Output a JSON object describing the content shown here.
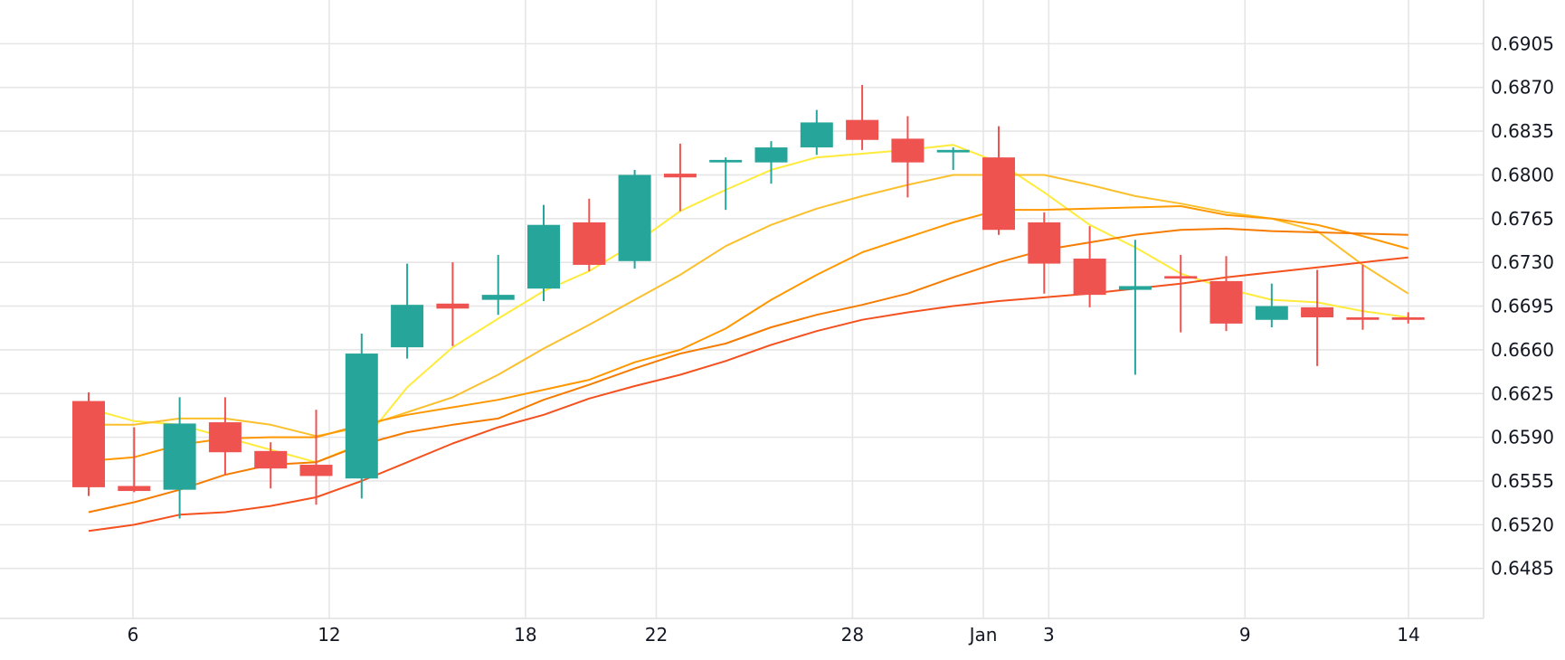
{
  "chart_data": {
    "type": "candlestick",
    "title": "",
    "xlabel": "",
    "ylabel": "",
    "ylim": [
      0.6445,
      0.694
    ],
    "grid": true,
    "colors": {
      "up": "#26a69a",
      "down": "#ef5350",
      "grid": "#e6e6e6",
      "text": "#131722",
      "ma_lines": [
        "#ffeb3b",
        "#fbc02d",
        "#ff9800",
        "#f57c00",
        "#f4511e"
      ]
    },
    "y_ticks": [
      "0.6905",
      "0.6870",
      "0.6835",
      "0.6800",
      "0.6765",
      "0.6730",
      "0.6695",
      "0.6660",
      "0.6625",
      "0.6590",
      "0.6555",
      "0.6520",
      "0.6485"
    ],
    "x_ticks": [
      {
        "label": "6",
        "date": "Dec 6"
      },
      {
        "label": "12",
        "date": "Dec 12"
      },
      {
        "label": "18",
        "date": "Dec 18"
      },
      {
        "label": "22",
        "date": "Dec 22"
      },
      {
        "label": "28",
        "date": "Dec 28"
      },
      {
        "label": "Jan",
        "date": "Jan 1"
      },
      {
        "label": "3",
        "date": "Jan 3"
      },
      {
        "label": "9",
        "date": "Jan 9"
      },
      {
        "label": "14",
        "date": "Jan 14"
      }
    ],
    "candles": [
      {
        "date": "Dec 5",
        "open": 0.6619,
        "high": 0.6626,
        "low": 0.6543,
        "close": 0.655
      },
      {
        "date": "Dec 6",
        "open": 0.6551,
        "high": 0.6598,
        "low": 0.6546,
        "close": 0.6547
      },
      {
        "date": "Dec 7",
        "open": 0.6548,
        "high": 0.6622,
        "low": 0.6525,
        "close": 0.6601
      },
      {
        "date": "Dec 8",
        "open": 0.6602,
        "high": 0.6622,
        "low": 0.656,
        "close": 0.6578
      },
      {
        "date": "Dec 9",
        "open": 0.6579,
        "high": 0.6586,
        "low": 0.6549,
        "close": 0.6565
      },
      {
        "date": "Dec 12",
        "open": 0.6568,
        "high": 0.6612,
        "low": 0.6536,
        "close": 0.6559
      },
      {
        "date": "Dec 13",
        "open": 0.6557,
        "high": 0.6673,
        "low": 0.6541,
        "close": 0.6657
      },
      {
        "date": "Dec 14",
        "open": 0.6662,
        "high": 0.6729,
        "low": 0.6653,
        "close": 0.6696
      },
      {
        "date": "Dec 15",
        "open": 0.6697,
        "high": 0.673,
        "low": 0.6663,
        "close": 0.6693
      },
      {
        "date": "Dec 16",
        "open": 0.67,
        "high": 0.6736,
        "low": 0.6688,
        "close": 0.6704
      },
      {
        "date": "Dec 19",
        "open": 0.6709,
        "high": 0.6776,
        "low": 0.6699,
        "close": 0.676
      },
      {
        "date": "Dec 20",
        "open": 0.6762,
        "high": 0.6781,
        "low": 0.6723,
        "close": 0.6728
      },
      {
        "date": "Dec 21",
        "open": 0.6731,
        "high": 0.6804,
        "low": 0.6725,
        "close": 0.68
      },
      {
        "date": "Dec 22",
        "open": 0.6801,
        "high": 0.6825,
        "low": 0.6771,
        "close": 0.6798
      },
      {
        "date": "Dec 23",
        "open": 0.681,
        "high": 0.6814,
        "low": 0.6772,
        "close": 0.6812
      },
      {
        "date": "Dec 27",
        "open": 0.681,
        "high": 0.6827,
        "low": 0.6793,
        "close": 0.6822
      },
      {
        "date": "Dec 28",
        "open": 0.6822,
        "high": 0.6852,
        "low": 0.6816,
        "close": 0.6842
      },
      {
        "date": "Dec 29",
        "open": 0.6844,
        "high": 0.6872,
        "low": 0.682,
        "close": 0.6828
      },
      {
        "date": "Dec 30",
        "open": 0.6829,
        "high": 0.6847,
        "low": 0.6782,
        "close": 0.681
      },
      {
        "date": "Jan 1",
        "open": 0.6818,
        "high": 0.6822,
        "low": 0.6804,
        "close": 0.682
      },
      {
        "date": "Jan 2",
        "open": 0.6814,
        "high": 0.6839,
        "low": 0.6752,
        "close": 0.6756
      },
      {
        "date": "Jan 3",
        "open": 0.6762,
        "high": 0.677,
        "low": 0.6705,
        "close": 0.6729
      },
      {
        "date": "Jan 4",
        "open": 0.6733,
        "high": 0.6759,
        "low": 0.6694,
        "close": 0.6704
      },
      {
        "date": "Jan 5",
        "open": 0.6708,
        "high": 0.6748,
        "low": 0.664,
        "close": 0.6711
      },
      {
        "date": "Jan 6",
        "open": 0.6719,
        "high": 0.6736,
        "low": 0.6674,
        "close": 0.6717
      },
      {
        "date": "Jan 9",
        "open": 0.6715,
        "high": 0.6735,
        "low": 0.6675,
        "close": 0.6681
      },
      {
        "date": "Jan 10",
        "open": 0.6684,
        "high": 0.6713,
        "low": 0.6678,
        "close": 0.6695
      },
      {
        "date": "Jan 11",
        "open": 0.6694,
        "high": 0.6724,
        "low": 0.6647,
        "close": 0.6686
      },
      {
        "date": "Jan 12",
        "open": 0.6686,
        "high": 0.6728,
        "low": 0.6676,
        "close": 0.6684
      },
      {
        "date": "Jan 13",
        "open": 0.6686,
        "high": 0.669,
        "low": 0.6681,
        "close": 0.6684
      }
    ],
    "series": [
      {
        "values": [
          0.6613,
          0.6603,
          0.66,
          0.659,
          0.658,
          0.657,
          0.6585,
          0.663,
          0.6662,
          0.6685,
          0.6707,
          0.6723,
          0.6745,
          0.6771,
          0.6788,
          0.6804,
          0.6814,
          0.6817,
          0.682,
          0.6824,
          0.681,
          0.6786,
          0.676,
          0.6742,
          0.6721,
          0.6709,
          0.67,
          0.6698,
          0.6691,
          0.6686
        ]
      },
      {
        "values": null,
        "note_omitted": true
      }
    ],
    "ma_series": [
      {
        "values": [
          0.66,
          0.66,
          0.6605,
          0.6605,
          0.66,
          0.6591,
          0.6598,
          0.661,
          0.6622,
          0.664,
          0.6661,
          0.668,
          0.67,
          0.672,
          0.6743,
          0.676,
          0.6773,
          0.6783,
          0.6792,
          0.68,
          0.68,
          0.68,
          0.6792,
          0.6783,
          0.6777,
          0.677,
          0.6765,
          0.6755,
          0.6728,
          0.6705
        ]
      },
      {
        "values": [
          0.6571,
          0.6574,
          0.6584,
          0.6589,
          0.659,
          0.659,
          0.66,
          0.6608,
          0.6614,
          0.662,
          0.6628,
          0.6636,
          0.665,
          0.666,
          0.6677,
          0.67,
          0.672,
          0.6738,
          0.675,
          0.6762,
          0.6772,
          0.6772,
          0.6773,
          0.6774,
          0.6775,
          0.6768,
          0.6765,
          0.676,
          0.6751,
          0.6741
        ]
      },
      {
        "values": [
          0.653,
          0.6538,
          0.6548,
          0.656,
          0.6568,
          0.657,
          0.6584,
          0.6594,
          0.66,
          0.6605,
          0.662,
          0.6632,
          0.6645,
          0.6657,
          0.6665,
          0.6678,
          0.6688,
          0.6696,
          0.6705,
          0.6718,
          0.673,
          0.674,
          0.6746,
          0.6752,
          0.6756,
          0.6757,
          0.6755,
          0.6754,
          0.6753,
          0.6752
        ]
      },
      {
        "values": [
          0.6515,
          0.652,
          0.6528,
          0.653,
          0.6535,
          0.6542,
          0.6555,
          0.657,
          0.6585,
          0.6598,
          0.6608,
          0.6621,
          0.6631,
          0.664,
          0.6651,
          0.6664,
          0.6675,
          0.6684,
          0.669,
          0.6695,
          0.6699,
          0.6702,
          0.6705,
          0.6709,
          0.6713,
          0.6718,
          0.6722,
          0.6726,
          0.673,
          0.6734
        ]
      }
    ]
  }
}
